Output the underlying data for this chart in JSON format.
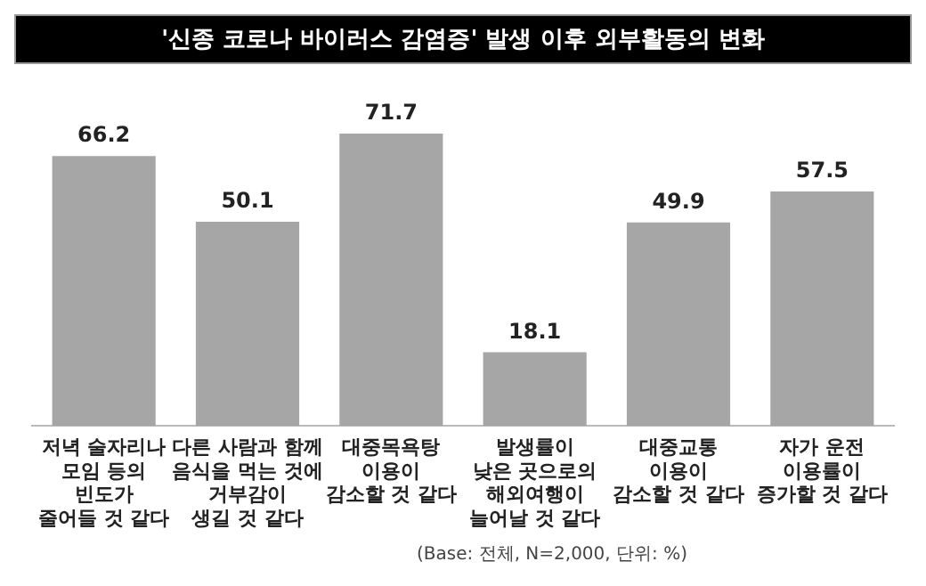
{
  "chart_data": {
    "type": "bar",
    "title": "'신종 코로나 바이러스 감염증' 발생 이후 외부활동의 변화",
    "categories": [
      "저녁 술자리나\n모임 등의\n빈도가\n줄어들 것 같다",
      "다른 사람과 함께\n음식을 먹는 것에\n거부감이\n생길 것 같다",
      "대중목욕탕\n이용이\n감소할 것 같다",
      "발생률이\n낮은 곳으로의\n해외여행이\n늘어날 것 같다",
      "대중교통\n이용이\n감소할 것 같다",
      "자가 운전\n이용률이\n증가할 것 같다"
    ],
    "values": [
      66.2,
      50.1,
      71.7,
      18.1,
      49.9,
      57.5
    ],
    "color": "#a6a6a6",
    "data_labels": true,
    "grid": false,
    "legend": false,
    "tick_labels": "x",
    "annotations": [
      "(Base: 전체, N=2,000, 단위: %)"
    ]
  }
}
